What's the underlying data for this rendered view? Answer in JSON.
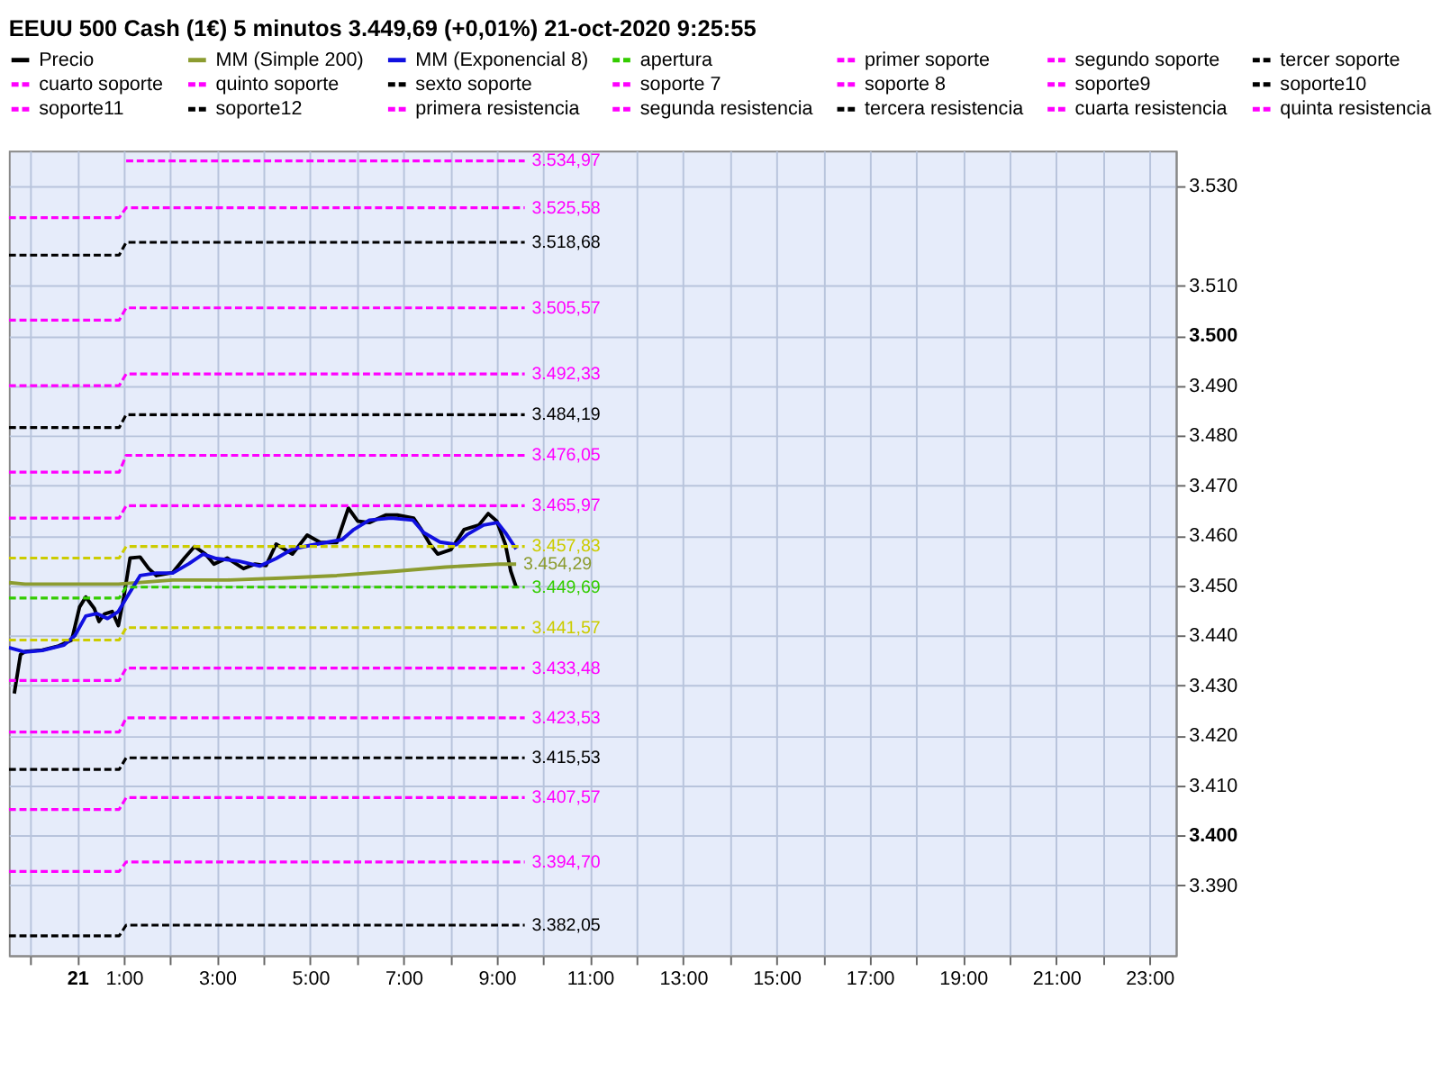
{
  "chart_data": {
    "type": "line",
    "title": "EEUU 500 Cash (1€)   5 minutos   3.449,69 (+0,01%)   21-oct-2020 9:25:55",
    "xlim": [
      "2020-10-20T22:32",
      "2020-10-21T23:34"
    ],
    "xticks": [
      {
        "value": "2020-10-20T23:00",
        "label": null
      },
      {
        "value": "2020-10-21T00:00",
        "label": "21"
      },
      {
        "value": "2020-10-21T01:00",
        "label": "1:00"
      },
      {
        "value": "2020-10-21T02:00",
        "label": null
      },
      {
        "value": "2020-10-21T03:00",
        "label": "3:00"
      },
      {
        "value": "2020-10-21T04:00",
        "label": null
      },
      {
        "value": "2020-10-21T05:00",
        "label": "5:00"
      },
      {
        "value": "2020-10-21T06:00",
        "label": null
      },
      {
        "value": "2020-10-21T07:00",
        "label": "7:00"
      },
      {
        "value": "2020-10-21T08:00",
        "label": null
      },
      {
        "value": "2020-10-21T09:00",
        "label": "9:00"
      },
      {
        "value": "2020-10-21T10:00",
        "label": null
      },
      {
        "value": "2020-10-21T11:00",
        "label": "11:00"
      },
      {
        "value": "2020-10-21T12:00",
        "label": null
      },
      {
        "value": "2020-10-21T13:00",
        "label": "13:00"
      },
      {
        "value": "2020-10-21T14:00",
        "label": null
      },
      {
        "value": "2020-10-21T15:00",
        "label": "15:00"
      },
      {
        "value": "2020-10-21T16:00",
        "label": null
      },
      {
        "value": "2020-10-21T17:00",
        "label": "17:00"
      },
      {
        "value": "2020-10-21T18:00",
        "label": null
      },
      {
        "value": "2020-10-21T19:00",
        "label": "19:00"
      },
      {
        "value": "2020-10-21T20:00",
        "label": null
      },
      {
        "value": "2020-10-21T21:00",
        "label": "21:00"
      },
      {
        "value": "2020-10-21T22:00",
        "label": null
      },
      {
        "value": "2020-10-21T23:00",
        "label": "23:00"
      }
    ],
    "ylim": [
      3376,
      3537
    ],
    "yticks": [
      {
        "value": 3390,
        "label": "3.390"
      },
      {
        "value": 3400,
        "label": "3.400"
      },
      {
        "value": 3410,
        "label": "3.410"
      },
      {
        "value": 3420,
        "label": "3.420"
      },
      {
        "value": 3430,
        "label": "3.430"
      },
      {
        "value": 3440,
        "label": "3.440"
      },
      {
        "value": 3450,
        "label": "3.450"
      },
      {
        "value": 3460,
        "label": "3.460"
      },
      {
        "value": 3470,
        "label": "3.470"
      },
      {
        "value": 3480,
        "label": "3.480"
      },
      {
        "value": 3490,
        "label": "3.490"
      },
      {
        "value": 3500,
        "label": "3.500"
      },
      {
        "value": 3510,
        "label": "3.510"
      },
      {
        "value": 3530,
        "label": "3.530"
      }
    ],
    "grid": true,
    "legend": "top",
    "series": [
      {
        "name": "Precio",
        "color": "#000000",
        "line_style": "solid",
        "x": [
          "2020-10-20T22:39",
          "2020-10-20T22:47",
          "2020-10-20T22:53",
          "2020-10-20T23:15",
          "2020-10-20T23:36",
          "2020-10-20T23:53",
          "2020-10-21T00:03",
          "2020-10-21T00:11",
          "2020-10-21T00:22",
          "2020-10-21T00:28",
          "2020-10-21T00:35",
          "2020-10-21T00:45",
          "2020-10-21T00:53",
          "2020-10-21T01:00",
          "2020-10-21T01:08",
          "2020-10-21T01:21",
          "2020-10-21T01:32",
          "2020-10-21T01:42",
          "2020-10-21T02:03",
          "2020-10-21T02:18",
          "2020-10-21T02:31",
          "2020-10-21T02:45",
          "2020-10-21T02:56",
          "2020-10-21T03:13",
          "2020-10-21T03:34",
          "2020-10-21T03:49",
          "2020-10-21T04:03",
          "2020-10-21T04:16",
          "2020-10-21T04:37",
          "2020-10-21T04:56",
          "2020-10-21T05:13",
          "2020-10-21T05:34",
          "2020-10-21T05:49",
          "2020-10-21T06:01",
          "2020-10-21T06:16",
          "2020-10-21T06:37",
          "2020-10-21T06:52",
          "2020-10-21T07:13",
          "2020-10-21T07:23",
          "2020-10-21T07:34",
          "2020-10-21T07:44",
          "2020-10-21T08:01",
          "2020-10-21T08:18",
          "2020-10-21T08:37",
          "2020-10-21T08:49",
          "2020-10-21T09:00",
          "2020-10-21T09:11",
          "2020-10-21T09:18",
          "2020-10-21T09:25"
        ],
        "values": [
          3428.4,
          3436.2,
          3436.8,
          3437.1,
          3437.9,
          3439.1,
          3445.7,
          3447.7,
          3445.4,
          3442.8,
          3444.3,
          3444.8,
          3442.0,
          3447.7,
          3455.5,
          3455.7,
          3453.4,
          3452.0,
          3452.6,
          3455.5,
          3457.8,
          3456.3,
          3454.3,
          3455.5,
          3453.4,
          3454.3,
          3454.0,
          3458.3,
          3456.3,
          3460.1,
          3458.6,
          3458.6,
          3465.5,
          3462.9,
          3462.6,
          3464.1,
          3464.1,
          3463.5,
          3461.2,
          3458.3,
          3456.3,
          3457.2,
          3461.2,
          3462.1,
          3464.4,
          3462.9,
          3458.3,
          3452.9,
          3449.7
        ]
      },
      {
        "name": "MM (Simple 200)",
        "color": "#8c9c30",
        "line_style": "solid",
        "x": [
          "2020-10-20T22:32",
          "2020-10-20T22:53",
          "2020-10-20T23:43",
          "2020-10-21T00:53",
          "2020-10-21T02:03",
          "2020-10-21T03:13",
          "2020-10-21T04:23",
          "2020-10-21T05:34",
          "2020-10-21T06:44",
          "2020-10-21T07:54",
          "2020-10-21T09:04",
          "2020-10-21T09:25"
        ],
        "values": [
          3450.6,
          3450.3,
          3450.3,
          3450.3,
          3451.1,
          3451.1,
          3451.5,
          3452.0,
          3452.8,
          3453.7,
          3454.3,
          3454.29
        ],
        "value_labels": [
          null,
          null,
          null,
          null,
          null,
          null,
          null,
          null,
          null,
          null,
          null,
          "3.454,29"
        ]
      },
      {
        "name": "MM (Exponencial 8)",
        "color": "#1010e0",
        "line_style": "solid",
        "x": [
          "2020-10-20T22:32",
          "2020-10-20T22:53",
          "2020-10-20T23:15",
          "2020-10-20T23:43",
          "2020-10-20T23:57",
          "2020-10-21T00:11",
          "2020-10-21T00:25",
          "2020-10-21T00:39",
          "2020-10-21T00:53",
          "2020-10-21T01:04",
          "2020-10-21T01:21",
          "2020-10-21T01:42",
          "2020-10-21T02:03",
          "2020-10-21T02:24",
          "2020-10-21T02:42",
          "2020-10-21T02:59",
          "2020-10-21T03:28",
          "2020-10-21T03:55",
          "2020-10-21T04:16",
          "2020-10-21T04:37",
          "2020-10-21T05:05",
          "2020-10-21T05:41",
          "2020-10-21T05:55",
          "2020-10-21T06:16",
          "2020-10-21T06:44",
          "2020-10-21T07:12",
          "2020-10-21T07:26",
          "2020-10-21T07:47",
          "2020-10-21T08:08",
          "2020-10-21T08:22",
          "2020-10-21T08:43",
          "2020-10-21T09:01",
          "2020-10-21T09:11",
          "2020-10-21T09:25"
        ],
        "values": [
          3437.6,
          3436.7,
          3437.0,
          3438.1,
          3440.0,
          3443.9,
          3444.4,
          3443.4,
          3444.8,
          3447.7,
          3452.0,
          3452.5,
          3452.5,
          3454.4,
          3456.3,
          3455.4,
          3454.9,
          3453.9,
          3455.4,
          3457.3,
          3458.2,
          3459.2,
          3461.1,
          3463.1,
          3463.5,
          3463.1,
          3460.6,
          3458.7,
          3458.2,
          3460.2,
          3462.1,
          3462.6,
          3460.6,
          3457.3
        ]
      },
      {
        "name": "apertura",
        "color": "#33cc00",
        "line_style": "dashed",
        "x": [
          "2020-10-20T22:32",
          "2020-10-21T00:54",
          "2020-10-21T01:03",
          "2020-10-21T09:36"
        ],
        "values": [
          3447.5,
          3447.5,
          3449.69,
          3449.69
        ],
        "value_labels": [
          null,
          null,
          null,
          "3.449,69"
        ]
      },
      {
        "name": "primer soporte",
        "color": "#ff00ff",
        "line_style": "dashed",
        "x": [
          "2020-10-20T22:32",
          "2020-10-21T00:54",
          "2020-10-21T01:03",
          "2020-10-21T09:36"
        ],
        "values": [
          3431.0,
          3431.0,
          3433.48,
          3433.48
        ],
        "value_labels": [
          null,
          null,
          null,
          "3.433,48"
        ]
      },
      {
        "name": "segundo soporte",
        "color": "#ff00ff",
        "line_style": "dashed",
        "x": [
          "2020-10-20T22:32",
          "2020-10-21T00:54",
          "2020-10-21T01:03",
          "2020-10-21T09:36"
        ],
        "values": [
          3420.7,
          3420.7,
          3423.53,
          3423.53
        ],
        "value_labels": [
          null,
          null,
          null,
          "3.423,53"
        ]
      },
      {
        "name": "tercer soporte",
        "color": "#000000",
        "line_style": "dashed",
        "x": [
          "2020-10-20T22:32",
          "2020-10-21T00:54",
          "2020-10-21T01:03",
          "2020-10-21T09:36"
        ],
        "values": [
          3413.2,
          3413.2,
          3415.53,
          3415.53
        ],
        "value_labels": [
          null,
          null,
          null,
          "3.415,53"
        ]
      },
      {
        "name": "cuarto soporte",
        "color": "#ff00ff",
        "line_style": "dashed",
        "x": [
          "2020-10-20T22:32",
          "2020-10-21T00:54",
          "2020-10-21T01:03",
          "2020-10-21T09:36"
        ],
        "values": [
          3405.2,
          3405.2,
          3407.57,
          3407.57
        ],
        "value_labels": [
          null,
          null,
          null,
          "3.407,57"
        ]
      },
      {
        "name": "quinto soporte",
        "color": "#ff00ff",
        "line_style": "dashed",
        "x": [
          "2020-10-20T22:32",
          "2020-10-21T00:54",
          "2020-10-21T01:03",
          "2020-10-21T09:36"
        ],
        "values": [
          3392.8,
          3392.8,
          3394.7,
          3394.7
        ],
        "value_labels": [
          null,
          null,
          null,
          "3.394,70"
        ]
      },
      {
        "name": "sexto soporte",
        "color": "#000000",
        "line_style": "dashed",
        "x": [
          "2020-10-20T22:32",
          "2020-10-21T00:54",
          "2020-10-21T01:03",
          "2020-10-21T09:36"
        ],
        "values": [
          3379.9,
          3379.9,
          3382.05,
          3382.05
        ],
        "value_labels": [
          null,
          null,
          null,
          "3.382,05"
        ]
      },
      {
        "name": "soporte 7",
        "color": "#ff00ff",
        "line_style": "dashed"
      },
      {
        "name": "soporte 8",
        "color": "#ff00ff",
        "line_style": "dashed"
      },
      {
        "name": "soporte9",
        "color": "#ff00ff",
        "line_style": "dashed"
      },
      {
        "name": "soporte10",
        "color": "#000000",
        "line_style": "dashed"
      },
      {
        "name": "soporte11",
        "color": "#ff00ff",
        "line_style": "dashed"
      },
      {
        "name": "soporte12",
        "color": "#000000",
        "line_style": "dashed"
      },
      {
        "name": "primera resistencia",
        "color": "#ff00ff",
        "line_style": "dashed",
        "x": [
          "2020-10-20T22:32",
          "2020-10-21T00:54",
          "2020-10-21T01:03",
          "2020-10-21T09:36"
        ],
        "values": [
          3463.5,
          3463.5,
          3465.97,
          3465.97
        ],
        "value_labels": [
          null,
          null,
          null,
          "3.465,97"
        ]
      },
      {
        "name": "segunda resistencia",
        "color": "#ff00ff",
        "line_style": "dashed",
        "x": [
          "2020-10-20T22:32",
          "2020-10-21T00:54",
          "2020-10-21T01:03",
          "2020-10-21T09:36"
        ],
        "values": [
          3472.7,
          3472.7,
          3476.05,
          3476.05
        ],
        "value_labels": [
          null,
          null,
          null,
          "3.476,05"
        ]
      },
      {
        "name": "tercera resistencia",
        "color": "#000000",
        "line_style": "dashed",
        "x": [
          "2020-10-20T22:32",
          "2020-10-21T00:54",
          "2020-10-21T01:03",
          "2020-10-21T09:36"
        ],
        "values": [
          3481.6,
          3481.6,
          3484.19,
          3484.19
        ],
        "value_labels": [
          null,
          null,
          null,
          "3.484,19"
        ]
      },
      {
        "name": "cuarta resistencia",
        "color": "#ff00ff",
        "line_style": "dashed",
        "x": [
          "2020-10-20T22:32",
          "2020-10-21T00:54",
          "2020-10-21T01:03",
          "2020-10-21T09:36"
        ],
        "values": [
          3490.0,
          3490.0,
          3492.33,
          3492.33
        ],
        "value_labels": [
          null,
          null,
          null,
          "3.492,33"
        ]
      },
      {
        "name": "quinta resistencia",
        "color": "#ff00ff",
        "line_style": "dashed",
        "x": [
          "2020-10-20T22:32",
          "2020-10-21T00:54",
          "2020-10-21T01:03",
          "2020-10-21T09:36"
        ],
        "values": [
          3503.1,
          3503.1,
          3505.57,
          3505.57
        ],
        "value_labels": [
          null,
          null,
          null,
          "3.505,57"
        ]
      },
      {
        "color": "#000000",
        "line_style": "dashed",
        "x": [
          "2020-10-20T22:32",
          "2020-10-21T00:54",
          "2020-10-21T01:03",
          "2020-10-21T09:36"
        ],
        "values": [
          3516.1,
          3516.1,
          3518.68,
          3518.68
        ],
        "value_labels": [
          null,
          null,
          null,
          "3.518,68"
        ]
      },
      {
        "color": "#ff00ff",
        "line_style": "dashed",
        "x": [
          "2020-10-20T22:32",
          "2020-10-21T00:54",
          "2020-10-21T01:03",
          "2020-10-21T09:36"
        ],
        "values": [
          3523.6,
          3523.6,
          3525.58,
          3525.58
        ],
        "value_labels": [
          null,
          null,
          null,
          "3.525,58"
        ]
      },
      {
        "color": "#ff00ff",
        "line_style": "dashed",
        "x": [
          "2020-10-21T01:03",
          "2020-10-21T09:36"
        ],
        "values": [
          3534.97,
          3534.97
        ],
        "value_labels": [
          null,
          "3.534,97"
        ]
      },
      {
        "color": "#cccc00",
        "line_style": "dashed",
        "x": [
          "2020-10-20T22:32",
          "2020-10-21T00:54",
          "2020-10-21T01:03",
          "2020-10-21T09:36"
        ],
        "values": [
          3455.5,
          3455.5,
          3457.83,
          3457.83
        ],
        "value_labels": [
          null,
          null,
          null,
          "3.457,83"
        ]
      },
      {
        "color": "#cccc00",
        "line_style": "dashed",
        "x": [
          "2020-10-20T22:32",
          "2020-10-21T00:54",
          "2020-10-21T01:03",
          "2020-10-21T09:36"
        ],
        "values": [
          3439.1,
          3439.1,
          3441.57,
          3441.57
        ],
        "value_labels": [
          null,
          null,
          null,
          "3.441,57"
        ]
      }
    ]
  }
}
